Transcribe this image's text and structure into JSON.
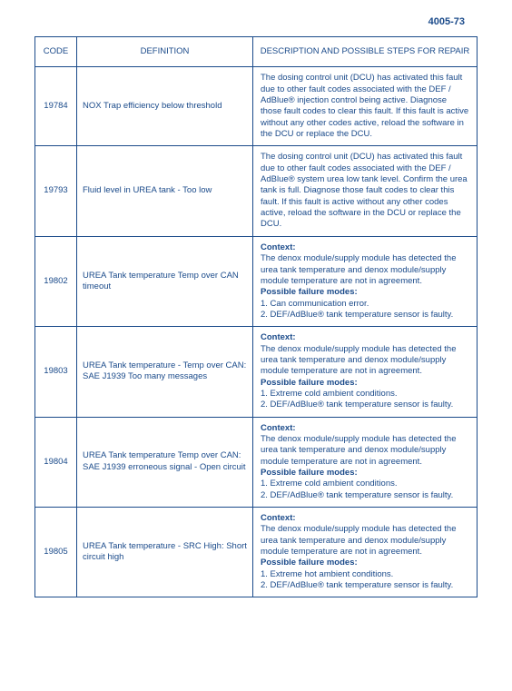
{
  "page_number": "4005-73",
  "colors": {
    "text": "#1a4a8a",
    "border": "#1a4a8a",
    "background": "#ffffff"
  },
  "headers": {
    "code": "CODE",
    "definition": "DEFINITION",
    "description": "DESCRIPTION AND POSSIBLE\nSTEPS FOR REPAIR"
  },
  "rows": [
    {
      "code": "19784",
      "definition": "NOX Trap efficiency below threshold",
      "desc_plain": "The dosing control unit (DCU) has activated this fault due to other fault codes associated with the DEF / AdBlue® injection control being active. Diagnose those fault codes to clear this fault. If this fault is active without any other codes active, reload the software in the DCU or replace the DCU."
    },
    {
      "code": "19793",
      "definition": "Fluid level in UREA tank - Too low",
      "desc_plain": "The dosing control unit (DCU) has activated this fault due to other fault codes associated with the DEF / AdBlue® system urea low tank level. Confirm the urea tank is full. Diagnose those fault codes to clear this fault. If this fault is active without any other codes active, reload the software in the DCU or replace the DCU."
    },
    {
      "code": "19802",
      "definition": "UREA Tank temperature Temp over CAN timeout",
      "context_label": "Context:",
      "context_text": "The denox module/supply module has detected the urea tank temperature and denox module/supply module temperature are not in agreement.",
      "modes_label": "Possible failure modes:",
      "modes": [
        "1. Can communication error.",
        "2. DEF/AdBlue® tank temperature sensor is faulty."
      ]
    },
    {
      "code": "19803",
      "definition": "UREA Tank temperature - Temp over CAN: SAE J1939 Too many messages",
      "context_label": "Context:",
      "context_text": "The denox module/supply module has detected the urea tank temperature and denox module/supply module temperature are not in agreement.",
      "modes_label": "Possible failure modes:",
      "modes": [
        "1. Extreme cold ambient conditions.",
        "2. DEF/AdBlue® tank temperature sensor is faulty."
      ]
    },
    {
      "code": "19804",
      "definition": "UREA Tank temperature Temp over CAN: SAE J1939 erroneous signal - Open circuit",
      "context_label": "Context:",
      "context_text": "The denox module/supply module has detected the urea tank temperature and denox module/supply module temperature are not in agreement.",
      "modes_label": "Possible failure modes:",
      "modes": [
        "1. Extreme cold ambient conditions.",
        "2. DEF/AdBlue® tank temperature sensor is faulty."
      ]
    },
    {
      "code": "19805",
      "definition": "UREA Tank temperature - SRC High: Short circuit high",
      "context_label": "Context:",
      "context_text": "The denox module/supply module has detected the urea tank temperature and denox module/supply module temperature are not in agreement.",
      "modes_label": "Possible failure modes:",
      "modes": [
        "1. Extreme hot ambient conditions.",
        "2. DEF/AdBlue® tank temperature sensor is faulty."
      ]
    }
  ]
}
